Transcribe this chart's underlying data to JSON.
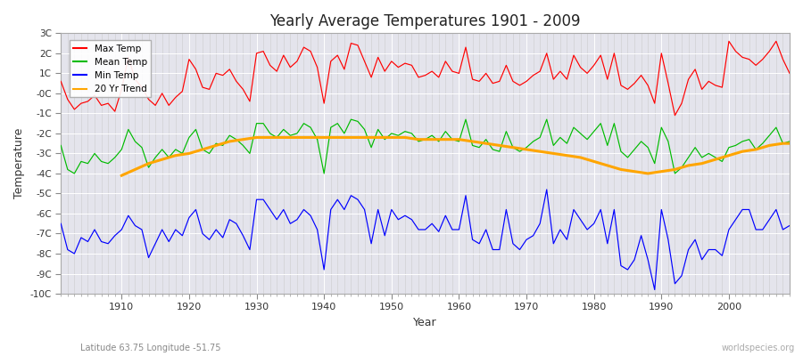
{
  "title": "Yearly Average Temperatures 1901 - 2009",
  "xlabel": "Year",
  "ylabel": "Temperature",
  "subtitle_left": "Latitude 63.75 Longitude -51.75",
  "subtitle_right": "worldspecies.org",
  "ylim": [
    -10,
    3
  ],
  "xlim": [
    1901,
    2009
  ],
  "yticks": [
    -10,
    -9,
    -8,
    -7,
    -6,
    -5,
    -4,
    -3,
    -2,
    -1,
    0,
    1,
    2,
    3
  ],
  "ytick_labels": [
    "-10C",
    "-9C",
    "-8C",
    "-7C",
    "-6C",
    "-5C",
    "-4C",
    "-3C",
    "-2C",
    "-1C",
    "-0C",
    "1C",
    "2C",
    "3C"
  ],
  "xticks": [
    1910,
    1920,
    1930,
    1940,
    1950,
    1960,
    1970,
    1980,
    1990,
    2000
  ],
  "colors": {
    "max_temp": "#ff0000",
    "mean_temp": "#00bb00",
    "min_temp": "#0000ff",
    "trend": "#ffa500",
    "fig_bg": "#f0f0f0",
    "plot_bg": "#e0e0e8",
    "grid": "#ffffff"
  },
  "legend": [
    {
      "label": "Max Temp",
      "color": "#ff0000"
    },
    {
      "label": "Mean Temp",
      "color": "#00bb00"
    },
    {
      "label": "Min Temp",
      "color": "#0000ff"
    },
    {
      "label": "20 Yr Trend",
      "color": "#ffa500"
    }
  ],
  "years": [
    1901,
    1902,
    1903,
    1904,
    1905,
    1906,
    1907,
    1908,
    1909,
    1910,
    1911,
    1912,
    1913,
    1914,
    1915,
    1916,
    1917,
    1918,
    1919,
    1920,
    1921,
    1922,
    1923,
    1924,
    1925,
    1926,
    1927,
    1928,
    1929,
    1930,
    1931,
    1932,
    1933,
    1934,
    1935,
    1936,
    1937,
    1938,
    1939,
    1940,
    1941,
    1942,
    1943,
    1944,
    1945,
    1946,
    1947,
    1948,
    1949,
    1950,
    1951,
    1952,
    1953,
    1954,
    1955,
    1956,
    1957,
    1958,
    1959,
    1960,
    1961,
    1962,
    1963,
    1964,
    1965,
    1966,
    1967,
    1968,
    1969,
    1970,
    1971,
    1972,
    1973,
    1974,
    1975,
    1976,
    1977,
    1978,
    1979,
    1980,
    1981,
    1982,
    1983,
    1984,
    1985,
    1986,
    1987,
    1988,
    1989,
    1990,
    1991,
    1992,
    1993,
    1994,
    1995,
    1996,
    1997,
    1998,
    1999,
    2000,
    2001,
    2002,
    2003,
    2004,
    2005,
    2006,
    2007,
    2008,
    2009
  ],
  "max_temp": [
    0.6,
    -0.3,
    -0.8,
    -0.5,
    -0.4,
    -0.1,
    -0.6,
    -0.5,
    -0.9,
    0.2,
    1.8,
    0.7,
    0.3,
    -0.3,
    -0.6,
    0.0,
    -0.6,
    -0.2,
    0.1,
    1.7,
    1.2,
    0.3,
    0.2,
    1.0,
    0.9,
    1.2,
    0.6,
    0.2,
    -0.4,
    2.0,
    2.1,
    1.4,
    1.1,
    1.9,
    1.3,
    1.6,
    2.3,
    2.1,
    1.3,
    -0.5,
    1.6,
    1.9,
    1.2,
    2.5,
    2.4,
    1.6,
    0.8,
    1.8,
    1.1,
    1.6,
    1.3,
    1.5,
    1.4,
    0.8,
    0.9,
    1.1,
    0.8,
    1.6,
    1.1,
    1.0,
    2.3,
    0.7,
    0.6,
    1.0,
    0.5,
    0.6,
    1.4,
    0.6,
    0.4,
    0.6,
    0.9,
    1.1,
    2.0,
    0.7,
    1.1,
    0.7,
    1.9,
    1.3,
    1.0,
    1.4,
    1.9,
    0.7,
    2.0,
    0.4,
    0.2,
    0.5,
    0.9,
    0.4,
    -0.5,
    2.0,
    0.5,
    -1.1,
    -0.5,
    0.7,
    1.2,
    0.2,
    0.6,
    0.4,
    0.3,
    2.6,
    2.1,
    1.8,
    1.7,
    1.4,
    1.7,
    2.1,
    2.6,
    1.7,
    1.0
  ],
  "mean_temp": [
    -2.6,
    -3.8,
    -4.0,
    -3.4,
    -3.5,
    -3.0,
    -3.4,
    -3.5,
    -3.2,
    -2.8,
    -1.8,
    -2.4,
    -2.7,
    -3.7,
    -3.2,
    -2.8,
    -3.2,
    -2.8,
    -3.0,
    -2.2,
    -1.8,
    -2.8,
    -3.0,
    -2.5,
    -2.6,
    -2.1,
    -2.3,
    -2.6,
    -3.0,
    -1.5,
    -1.5,
    -2.0,
    -2.2,
    -1.8,
    -2.1,
    -2.0,
    -1.5,
    -1.7,
    -2.3,
    -4.0,
    -1.7,
    -1.5,
    -2.0,
    -1.3,
    -1.4,
    -1.8,
    -2.7,
    -1.8,
    -2.3,
    -2.0,
    -2.1,
    -1.9,
    -2.0,
    -2.4,
    -2.3,
    -2.1,
    -2.4,
    -1.9,
    -2.3,
    -2.4,
    -1.3,
    -2.6,
    -2.7,
    -2.3,
    -2.8,
    -2.9,
    -1.9,
    -2.7,
    -2.9,
    -2.7,
    -2.4,
    -2.2,
    -1.3,
    -2.6,
    -2.2,
    -2.5,
    -1.7,
    -2.0,
    -2.3,
    -1.9,
    -1.5,
    -2.6,
    -1.5,
    -2.9,
    -3.2,
    -2.8,
    -2.4,
    -2.7,
    -3.5,
    -1.7,
    -2.4,
    -4.0,
    -3.7,
    -3.2,
    -2.7,
    -3.2,
    -3.0,
    -3.2,
    -3.4,
    -2.7,
    -2.6,
    -2.4,
    -2.3,
    -2.8,
    -2.5,
    -2.1,
    -1.7,
    -2.5,
    -2.4
  ],
  "min_temp": [
    -6.5,
    -7.8,
    -8.0,
    -7.2,
    -7.4,
    -6.8,
    -7.4,
    -7.5,
    -7.1,
    -6.8,
    -6.1,
    -6.6,
    -6.8,
    -8.2,
    -7.5,
    -6.8,
    -7.4,
    -6.8,
    -7.1,
    -6.2,
    -5.8,
    -7.0,
    -7.3,
    -6.8,
    -7.2,
    -6.3,
    -6.5,
    -7.1,
    -7.8,
    -5.3,
    -5.3,
    -5.8,
    -6.3,
    -5.8,
    -6.5,
    -6.3,
    -5.8,
    -6.1,
    -6.8,
    -8.8,
    -5.8,
    -5.3,
    -5.8,
    -5.1,
    -5.3,
    -5.8,
    -7.5,
    -5.8,
    -7.1,
    -5.8,
    -6.3,
    -6.1,
    -6.3,
    -6.8,
    -6.8,
    -6.5,
    -6.9,
    -6.1,
    -6.8,
    -6.8,
    -5.1,
    -7.3,
    -7.5,
    -6.8,
    -7.8,
    -7.8,
    -5.8,
    -7.5,
    -7.8,
    -7.3,
    -7.1,
    -6.5,
    -4.8,
    -7.5,
    -6.8,
    -7.3,
    -5.8,
    -6.3,
    -6.8,
    -6.5,
    -5.8,
    -7.5,
    -5.8,
    -8.6,
    -8.8,
    -8.3,
    -7.1,
    -8.3,
    -9.8,
    -5.8,
    -7.3,
    -9.5,
    -9.1,
    -7.8,
    -7.3,
    -8.3,
    -7.8,
    -7.8,
    -8.1,
    -6.8,
    -6.3,
    -5.8,
    -5.8,
    -6.8,
    -6.8,
    -6.3,
    -5.8,
    -6.8,
    -6.6
  ],
  "trend_years": [
    1910,
    1912,
    1914,
    1916,
    1918,
    1920,
    1922,
    1924,
    1926,
    1928,
    1930,
    1932,
    1934,
    1936,
    1938,
    1940,
    1942,
    1944,
    1946,
    1948,
    1950,
    1952,
    1954,
    1956,
    1958,
    1960,
    1962,
    1964,
    1966,
    1968,
    1970,
    1972,
    1974,
    1976,
    1978,
    1980,
    1982,
    1984,
    1986,
    1988,
    1990,
    1992,
    1994,
    1996,
    1998,
    2000,
    2002,
    2004,
    2006,
    2008,
    2009
  ],
  "trend_vals": [
    -4.1,
    -3.8,
    -3.5,
    -3.3,
    -3.1,
    -3.0,
    -2.8,
    -2.6,
    -2.4,
    -2.3,
    -2.2,
    -2.2,
    -2.2,
    -2.2,
    -2.2,
    -2.2,
    -2.2,
    -2.2,
    -2.2,
    -2.2,
    -2.2,
    -2.2,
    -2.3,
    -2.3,
    -2.3,
    -2.3,
    -2.4,
    -2.5,
    -2.6,
    -2.7,
    -2.8,
    -2.9,
    -3.0,
    -3.1,
    -3.2,
    -3.4,
    -3.6,
    -3.8,
    -3.9,
    -4.0,
    -3.9,
    -3.8,
    -3.6,
    -3.5,
    -3.3,
    -3.1,
    -2.9,
    -2.8,
    -2.6,
    -2.5,
    -2.5
  ]
}
